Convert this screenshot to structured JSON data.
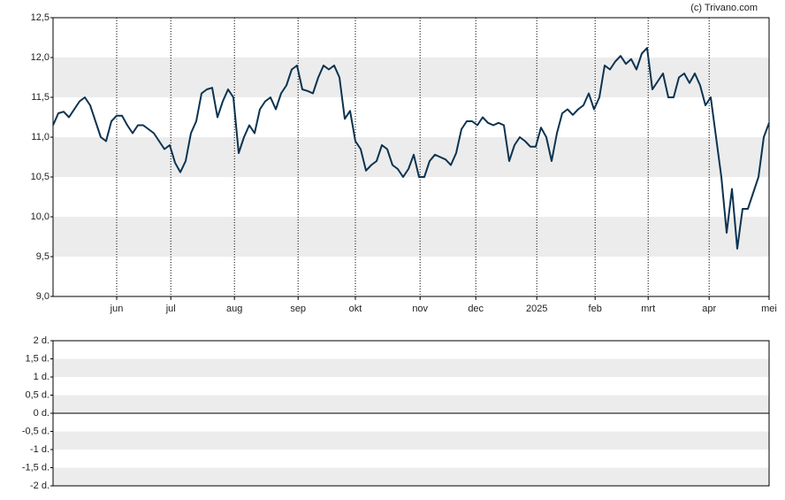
{
  "credit": "(c) Trivano.com",
  "chart_data": [
    {
      "type": "line",
      "color": "#0b3350",
      "grid": true,
      "values": [
        11.15,
        11.3,
        11.32,
        11.25,
        11.35,
        11.45,
        11.5,
        11.4,
        11.2,
        11.0,
        10.95,
        11.2,
        11.27,
        11.27,
        11.15,
        11.05,
        11.15,
        11.15,
        11.1,
        11.05,
        10.95,
        10.85,
        10.9,
        10.68,
        10.56,
        10.7,
        11.05,
        11.2,
        11.55,
        11.6,
        11.62,
        11.25,
        11.45,
        11.6,
        11.5,
        10.8,
        11.0,
        11.15,
        11.05,
        11.35,
        11.45,
        11.5,
        11.35,
        11.55,
        11.65,
        11.85,
        11.9,
        11.6,
        11.58,
        11.55,
        11.75,
        11.9,
        11.85,
        11.9,
        11.75,
        11.23,
        11.33,
        10.95,
        10.85,
        10.58,
        10.65,
        10.7,
        10.9,
        10.85,
        10.65,
        10.6,
        10.5,
        10.6,
        10.78,
        10.5,
        10.5,
        10.7,
        10.78,
        10.75,
        10.72,
        10.65,
        10.8,
        11.1,
        11.2,
        11.2,
        11.15,
        11.25,
        11.18,
        11.15,
        11.18,
        11.15,
        10.7,
        10.9,
        11.0,
        10.95,
        10.88,
        10.88,
        11.12,
        11.0,
        10.7,
        11.05,
        11.3,
        11.35,
        11.28,
        11.35,
        11.4,
        11.55,
        11.35,
        11.5,
        11.9,
        11.85,
        11.95,
        12.02,
        11.92,
        11.98,
        11.85,
        12.05,
        12.12,
        11.6,
        11.7,
        11.8,
        11.5,
        11.5,
        11.75,
        11.8,
        11.68,
        11.8,
        11.65,
        11.4,
        11.5,
        11.0,
        10.5,
        9.8,
        10.35,
        9.6,
        10.1,
        10.1,
        10.3,
        10.5,
        11.0,
        11.18
      ],
      "xlim": [
        0,
        135
      ],
      "xticks": [
        {
          "value": 12,
          "label": "jun"
        },
        {
          "value": 22.2,
          "label": "jul"
        },
        {
          "value": 34.2,
          "label": "aug"
        },
        {
          "value": 46.2,
          "label": "sep"
        },
        {
          "value": 57,
          "label": "okt"
        },
        {
          "value": 69.2,
          "label": "nov"
        },
        {
          "value": 79.7,
          "label": "dec"
        },
        {
          "value": 91.2,
          "label": "2025"
        },
        {
          "value": 102.2,
          "label": "feb"
        },
        {
          "value": 112.2,
          "label": "mrt"
        },
        {
          "value": 123.7,
          "label": "apr"
        },
        {
          "value": 135,
          "label": "mei"
        }
      ],
      "ylim": [
        9,
        12.5
      ],
      "yticks": [
        {
          "value": 9,
          "label": "9,0"
        },
        {
          "value": 9.5,
          "label": "9,5"
        },
        {
          "value": 10,
          "label": "10,0"
        },
        {
          "value": 10.5,
          "label": "10,5"
        },
        {
          "value": 11,
          "label": "11,0"
        },
        {
          "value": 11.5,
          "label": "11,5"
        },
        {
          "value": 12,
          "label": "12,0"
        },
        {
          "value": 12.5,
          "label": "12,5"
        }
      ]
    },
    {
      "type": "line",
      "grid": true,
      "ylim": [
        -2,
        2
      ],
      "yticks": [
        {
          "value": 2,
          "label": "2 d."
        },
        {
          "value": 1.5,
          "label": "1,5 d."
        },
        {
          "value": 1,
          "label": "1 d."
        },
        {
          "value": 0.5,
          "label": "0,5 d."
        },
        {
          "value": 0,
          "label": "0 d."
        },
        {
          "value": -0.5,
          "label": "-0,5 d."
        },
        {
          "value": -1,
          "label": "-1 d."
        },
        {
          "value": -1.5,
          "label": "-1,5 d."
        },
        {
          "value": -2,
          "label": "-2 d."
        }
      ]
    }
  ]
}
